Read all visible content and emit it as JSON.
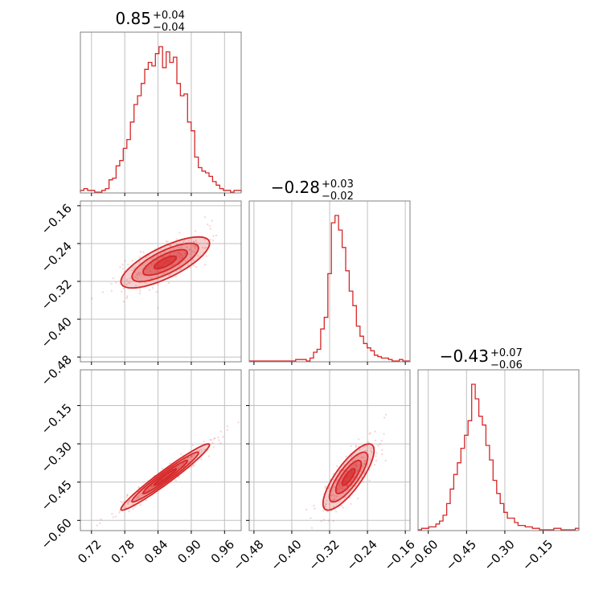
{
  "chart_data": {
    "type": "corner",
    "color": "#d62728",
    "params": [
      {
        "title_value": "0.85",
        "title_plus": "+0.04",
        "title_minus": "−0.04",
        "range": [
          0.7,
          0.99
        ],
        "ticks": [
          0.72,
          0.78,
          0.84,
          0.9,
          0.96
        ],
        "tick_labels": [
          "0.72",
          "0.78",
          "0.84",
          "0.90",
          "0.96"
        ]
      },
      {
        "title_value": "−0.28",
        "title_plus": "+0.03",
        "title_minus": "−0.02",
        "range": [
          -0.49,
          -0.15
        ],
        "ticks": [
          -0.48,
          -0.4,
          -0.32,
          -0.24,
          -0.16
        ],
        "tick_labels": [
          "−0.48",
          "−0.40",
          "−0.32",
          "−0.24",
          "−0.16"
        ]
      },
      {
        "title_value": "−0.43",
        "title_plus": "+0.07",
        "title_minus": "−0.06",
        "range": [
          -0.64,
          -0.01
        ],
        "ticks": [
          -0.6,
          -0.45,
          -0.3,
          -0.15
        ],
        "tick_labels": [
          "−0.60",
          "−0.45",
          "−0.30",
          "−0.15"
        ]
      }
    ],
    "histograms": [
      {
        "param": 0,
        "bins": [
          0.7,
          0.99
        ],
        "counts": [
          1,
          2,
          1,
          1,
          0,
          0,
          1,
          2,
          7,
          8,
          15,
          18,
          25,
          30,
          40,
          50,
          55,
          62,
          70,
          74,
          72,
          79,
          83,
          71,
          80,
          74,
          77,
          62,
          55,
          56,
          40,
          35,
          20,
          14,
          12,
          11,
          9,
          6,
          4,
          2,
          1,
          1,
          0,
          1,
          1
        ]
      },
      {
        "param": 1,
        "bins": [
          -0.49,
          -0.15
        ],
        "counts": [
          0,
          0,
          0,
          0,
          0,
          0,
          0,
          0,
          0,
          0,
          0,
          0,
          0,
          1,
          1,
          1,
          0,
          2,
          6,
          8,
          22,
          30,
          60,
          95,
          100,
          90,
          78,
          62,
          48,
          38,
          24,
          17,
          12,
          9,
          7,
          4,
          3,
          2,
          2,
          1,
          0,
          0,
          1,
          0,
          0
        ]
      },
      {
        "param": 2,
        "bins": [
          -0.64,
          -0.01
        ],
        "counts": [
          0,
          1,
          1,
          2,
          2,
          4,
          6,
          10,
          18,
          28,
          38,
          46,
          56,
          65,
          75,
          100,
          90,
          78,
          72,
          58,
          48,
          34,
          25,
          18,
          12,
          8,
          8,
          5,
          3,
          3,
          2,
          2,
          1,
          1,
          0,
          0,
          0,
          0,
          1,
          1,
          0,
          0,
          0,
          0,
          1
        ]
      }
    ],
    "correlations": [
      {
        "x_param": 0,
        "y_param": 1,
        "mean": [
          0.853,
          -0.28
        ],
        "sd": [
          0.04,
          0.027
        ],
        "rho": 0.75
      },
      {
        "x_param": 0,
        "y_param": 2,
        "mean": [
          0.853,
          -0.43
        ],
        "sd": [
          0.04,
          0.065
        ],
        "rho": 0.97
      },
      {
        "x_param": 1,
        "y_param": 2,
        "mean": [
          -0.28,
          -0.43
        ],
        "sd": [
          0.027,
          0.065
        ],
        "rho": 0.8
      }
    ],
    "grid": true
  }
}
